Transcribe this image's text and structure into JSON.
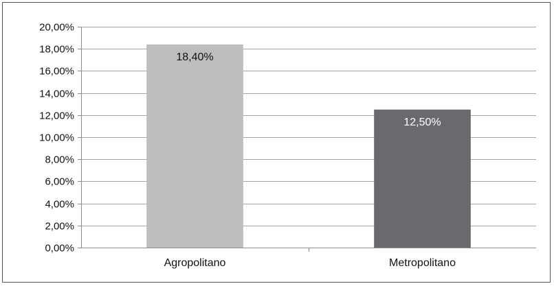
{
  "chart_data": {
    "type": "bar",
    "title": "",
    "xlabel": "",
    "ylabel": "",
    "categories": [
      "Agropolitano",
      "Metropolitano"
    ],
    "values": [
      18.4,
      12.5
    ],
    "data_labels": [
      "18,40%",
      "12,50%"
    ],
    "bar_colors": [
      "#bdbdc0",
      "#6a6a6e"
    ],
    "data_label_colors": [
      "#111111",
      "#ffffff"
    ],
    "ylim": [
      0,
      20
    ],
    "y_ticks": [
      0,
      2,
      4,
      6,
      8,
      10,
      12,
      14,
      16,
      18,
      20
    ],
    "y_tick_labels": [
      "0,00%",
      "2,00%",
      "4,00%",
      "6,00%",
      "8,00%",
      "10,00%",
      "12,00%",
      "14,00%",
      "16,00%",
      "18,00%",
      "20,00%"
    ],
    "grid": true,
    "gridline_color": "#a6a6a6",
    "axis_color": "#8c8c8c"
  }
}
